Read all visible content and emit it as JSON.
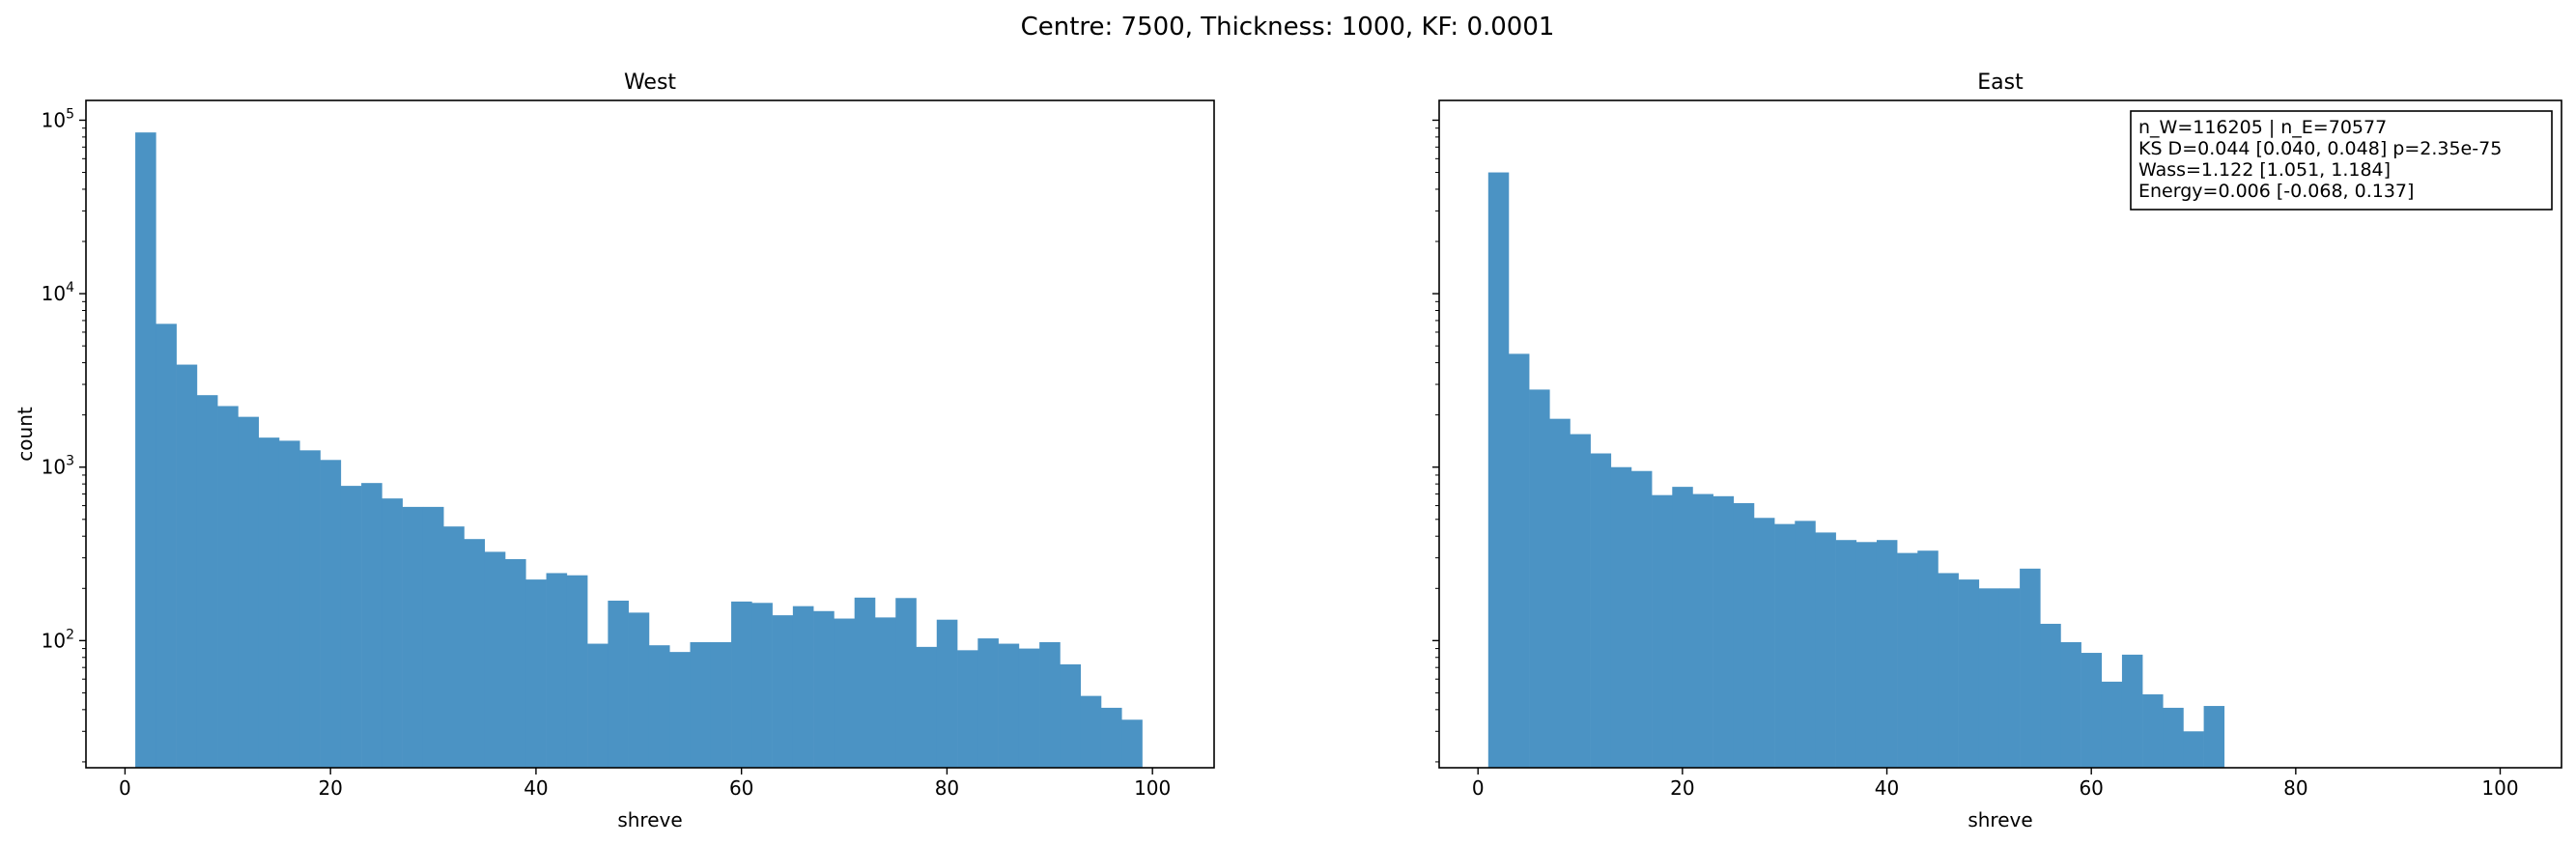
{
  "figure": {
    "suptitle": "Centre: 7500, Thickness: 1000, KF: 0.0001"
  },
  "colors": {
    "bar": "#4b93c4",
    "axis": "#000000",
    "background": "#ffffff"
  },
  "chart_data": [
    {
      "type": "bar",
      "panel": "west",
      "title": "West",
      "xlabel": "shreve",
      "ylabel": "count",
      "yscale": "log",
      "xlim": [
        -3.8,
        106
      ],
      "ylim": [
        18.5,
        130000
      ],
      "xticks": [
        0,
        20,
        40,
        60,
        80,
        100
      ],
      "yticks": [
        {
          "base": "10",
          "exp": "2",
          "value": 100
        },
        {
          "base": "10",
          "exp": "3",
          "value": 1000
        },
        {
          "base": "10",
          "exp": "4",
          "value": 10000
        },
        {
          "base": "10",
          "exp": "5",
          "value": 100000
        }
      ],
      "bin_start": 1,
      "bin_width": 2,
      "values": [
        85000,
        6700,
        3900,
        2600,
        2250,
        1950,
        1480,
        1420,
        1250,
        1100,
        780,
        810,
        660,
        590,
        590,
        455,
        385,
        325,
        295,
        225,
        245,
        238,
        96,
        170,
        145,
        94,
        86,
        98,
        98,
        168,
        165,
        140,
        158,
        148,
        134,
        177,
        136,
        176,
        92,
        132,
        88,
        103,
        96,
        90,
        98,
        73,
        48,
        41,
        35
      ]
    },
    {
      "type": "bar",
      "panel": "east",
      "title": "East",
      "xlabel": "shreve",
      "ylabel": "",
      "yscale": "log",
      "xlim": [
        -3.8,
        106
      ],
      "ylim": [
        18.5,
        130000
      ],
      "xticks": [
        0,
        20,
        40,
        60,
        80,
        100
      ],
      "bin_start": 1,
      "bin_width": 2,
      "values": [
        50000,
        4500,
        2800,
        1900,
        1550,
        1200,
        1000,
        950,
        690,
        770,
        700,
        680,
        620,
        510,
        470,
        490,
        420,
        380,
        370,
        380,
        320,
        330,
        245,
        225,
        200,
        200,
        260,
        125,
        98,
        85,
        58,
        83,
        49,
        41,
        30,
        42
      ],
      "annotation": {
        "lines": [
          "n_W=116205 | n_E=70577",
          "KS D=0.044 [0.040, 0.048]  p=2.35e-75",
          "Wass=1.122 [1.051, 1.184]",
          "Energy=0.006 [-0.068, 0.137]"
        ],
        "location": "top-right"
      }
    }
  ]
}
